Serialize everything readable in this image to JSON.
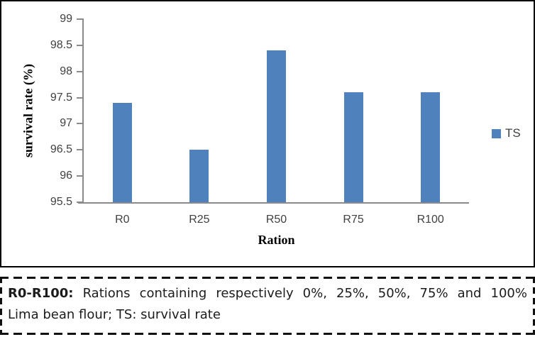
{
  "figure": {
    "legend": {
      "label": "TS",
      "color": "#4f81bd"
    },
    "note": {
      "bold_prefix": "R0-R100:",
      "line1_rest": "Rations containing respectively 0%, 25%, 50%, 75% and 100%",
      "line2": "Lima bean flour; TS: survival rate"
    }
  },
  "chart_data": {
    "type": "bar",
    "categories": [
      "R0",
      "R25",
      "R50",
      "R75",
      "R100"
    ],
    "series": [
      {
        "name": "TS",
        "values": [
          97.4,
          96.5,
          98.4,
          97.6,
          97.6
        ]
      }
    ],
    "title": "",
    "xlabel": "Ration",
    "ylabel": "survival rate (%)",
    "ylim": [
      95.5,
      99
    ],
    "ytick_step": 0.5,
    "yticks": [
      99,
      98.5,
      98,
      97.5,
      97,
      96.5,
      96,
      95.5
    ],
    "bar_color": "#4f81bd",
    "axis_color": "#8a8a8a",
    "legend_entries": [
      "TS"
    ],
    "legend_position": "right",
    "grid": false
  }
}
